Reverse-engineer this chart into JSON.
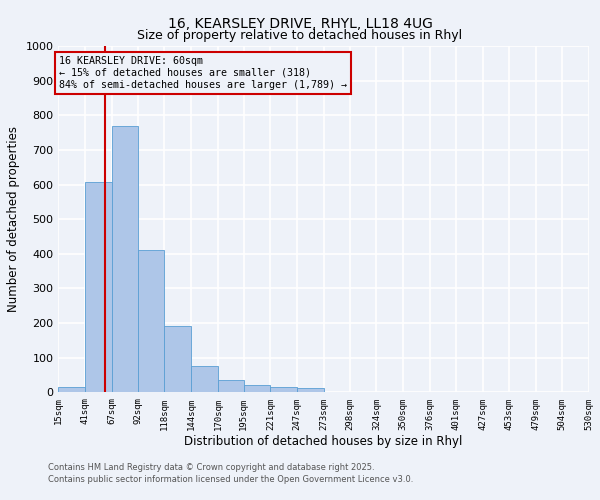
{
  "title1": "16, KEARSLEY DRIVE, RHYL, LL18 4UG",
  "title2": "Size of property relative to detached houses in Rhyl",
  "xlabel": "Distribution of detached houses by size in Rhyl",
  "ylabel": "Number of detached properties",
  "bar_edges": [
    15,
    41,
    67,
    92,
    118,
    144,
    170,
    195,
    221,
    247,
    273,
    298,
    324,
    350,
    376,
    401,
    427,
    453,
    479,
    504,
    530
  ],
  "bar_heights": [
    15,
    607,
    770,
    410,
    192,
    77,
    35,
    20,
    15,
    13,
    0,
    0,
    0,
    0,
    0,
    0,
    0,
    0,
    0,
    0
  ],
  "bar_color": "#aec6e8",
  "bar_edge_color": "#5a9fd4",
  "vline_x": 60,
  "vline_color": "#cc0000",
  "annotation_text1": "16 KEARSLEY DRIVE: 60sqm",
  "annotation_text2": "← 15% of detached houses are smaller (318)",
  "annotation_text3": "84% of semi-detached houses are larger (1,789) →",
  "annotation_box_color": "#cc0000",
  "ylim": [
    0,
    1000
  ],
  "xlim": [
    15,
    530
  ],
  "tick_labels": [
    "15sqm",
    "41sqm",
    "67sqm",
    "92sqm",
    "118sqm",
    "144sqm",
    "170sqm",
    "195sqm",
    "221sqm",
    "247sqm",
    "273sqm",
    "298sqm",
    "324sqm",
    "350sqm",
    "376sqm",
    "401sqm",
    "427sqm",
    "453sqm",
    "479sqm",
    "504sqm",
    "530sqm"
  ],
  "tick_positions": [
    15,
    41,
    67,
    92,
    118,
    144,
    170,
    195,
    221,
    247,
    273,
    298,
    324,
    350,
    376,
    401,
    427,
    453,
    479,
    504,
    530
  ],
  "footer_line1": "Contains HM Land Registry data © Crown copyright and database right 2025.",
  "footer_line2": "Contains public sector information licensed under the Open Government Licence v3.0.",
  "bg_color": "#eef2f9",
  "grid_color": "#ffffff",
  "title_fontsize": 10,
  "subtitle_fontsize": 9,
  "ytick_values": [
    0,
    100,
    200,
    300,
    400,
    500,
    600,
    700,
    800,
    900,
    1000
  ]
}
